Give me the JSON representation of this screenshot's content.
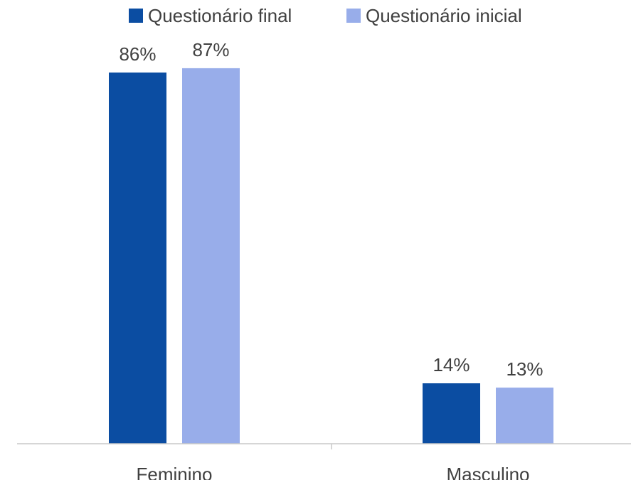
{
  "chart_data": {
    "type": "bar",
    "categories": [
      "Feminino",
      "Masculino"
    ],
    "series": [
      {
        "name": "Questionário final",
        "values": [
          86,
          14
        ],
        "labels": [
          "86%",
          "14%"
        ],
        "color": "#0b4da2"
      },
      {
        "name": "Questionário inicial",
        "values": [
          87,
          13
        ],
        "labels": [
          "87%",
          "13%"
        ],
        "color": "#98adea"
      }
    ],
    "title": "",
    "xlabel": "",
    "ylabel": "",
    "ylim": [
      0,
      100
    ],
    "legend_position": "top",
    "grid": false,
    "value_axis_visible": false
  }
}
